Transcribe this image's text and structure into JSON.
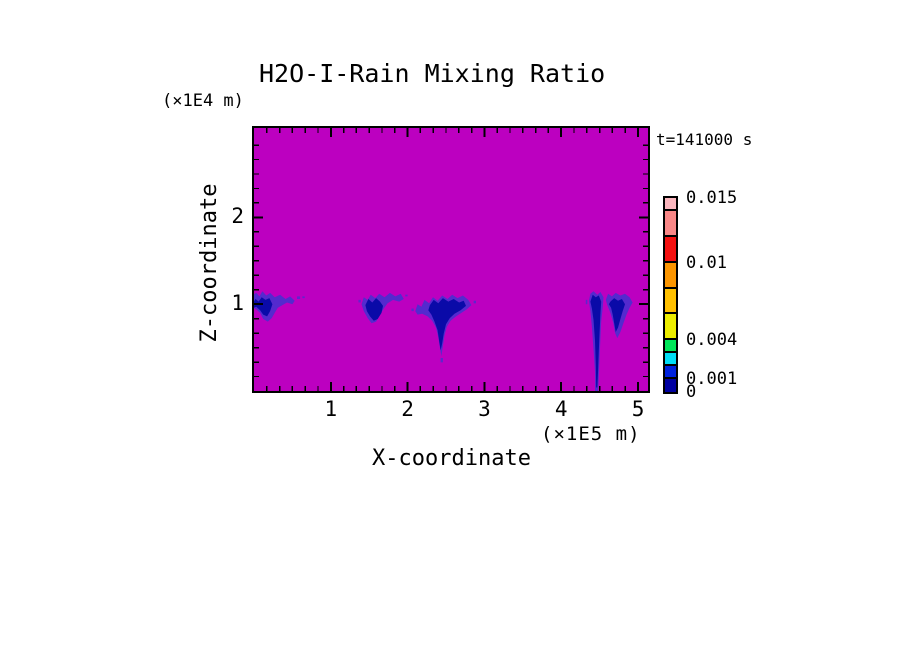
{
  "chart_data": {
    "type": "heatmap",
    "title": "H2O-I-Rain Mixing Ratio",
    "time_annotation": "t=141000 s",
    "grid": false,
    "legend_position": "right",
    "background_color": "#BC00C0",
    "background_note": "magenta field = zero / no rain mixing ratio",
    "x_axis": {
      "label": "X-coordinate",
      "unit": "(×1E5 m)",
      "range": [
        0,
        5.13
      ],
      "major_ticks": [
        1,
        2,
        3,
        4,
        5
      ],
      "minor_tick_interval": 0.1667
    },
    "z_axis": {
      "label": "Z-coordinate",
      "unit": "(×1E4 m)",
      "range": [
        0,
        3.03
      ],
      "major_ticks": [
        1,
        2
      ],
      "minor_tick_interval": 0.1667
    },
    "colorbar": {
      "value_range": [
        0,
        0.015
      ],
      "labels": [
        {
          "text": "0.015",
          "value": 0.015
        },
        {
          "text": "0.01",
          "value": 0.01
        },
        {
          "text": "0.004",
          "value": 0.004
        },
        {
          "text": "0.001",
          "value": 0.001
        },
        {
          "text": "0",
          "value": 0
        }
      ],
      "levels": [
        {
          "from": 0,
          "to": 0.001,
          "color": "#0000A0"
        },
        {
          "from": 0.001,
          "to": 0.002,
          "color": "#0022DD"
        },
        {
          "from": 0.002,
          "to": 0.003,
          "color": "#00DDF6"
        },
        {
          "from": 0.003,
          "to": 0.004,
          "color": "#00E659"
        },
        {
          "from": 0.004,
          "to": 0.006,
          "color": "#EDED00"
        },
        {
          "from": 0.006,
          "to": 0.008,
          "color": "#FFC000"
        },
        {
          "from": 0.008,
          "to": 0.01,
          "color": "#FB9500"
        },
        {
          "from": 0.01,
          "to": 0.012,
          "color": "#F41111"
        },
        {
          "from": 0.012,
          "to": 0.014,
          "color": "#F98787"
        },
        {
          "from": 0.014,
          "to": 0.015,
          "color": "#FBB6BE"
        }
      ]
    },
    "palette": {
      "fringe": "#4630CF",
      "core": "#0A0AA8"
    },
    "features": [
      {
        "name": "rain-cell-1",
        "value_band": [
          0,
          0.002
        ],
        "x_range": [
          0.0,
          0.55
        ],
        "z_range": [
          0.8,
          1.15
        ],
        "fringe": [
          [
            -0.03,
            0.97
          ],
          [
            -0.03,
            1.1
          ],
          [
            0.03,
            1.13
          ],
          [
            0.07,
            1.09
          ],
          [
            0.11,
            1.15
          ],
          [
            0.16,
            1.1
          ],
          [
            0.21,
            1.13
          ],
          [
            0.27,
            1.08
          ],
          [
            0.34,
            1.11
          ],
          [
            0.41,
            1.06
          ],
          [
            0.47,
            1.09
          ],
          [
            0.53,
            1.04
          ],
          [
            0.5,
            1.0
          ],
          [
            0.43,
            1.02
          ],
          [
            0.37,
            0.99
          ],
          [
            0.31,
            0.96
          ],
          [
            0.27,
            0.9
          ],
          [
            0.23,
            0.84
          ],
          [
            0.18,
            0.8
          ],
          [
            0.12,
            0.83
          ],
          [
            0.08,
            0.9
          ],
          [
            0.03,
            0.94
          ]
        ],
        "core": [
          [
            -0.03,
            0.99
          ],
          [
            0.02,
            1.06
          ],
          [
            0.06,
            1.03
          ],
          [
            0.1,
            1.08
          ],
          [
            0.15,
            1.05
          ],
          [
            0.2,
            1.07
          ],
          [
            0.24,
            1.0
          ],
          [
            0.21,
            0.92
          ],
          [
            0.17,
            0.86
          ],
          [
            0.12,
            0.88
          ],
          [
            0.08,
            0.93
          ],
          [
            0.03,
            0.97
          ],
          [
            -0.03,
            0.95
          ]
        ]
      },
      {
        "name": "rain-cell-2",
        "value_band": [
          0,
          0.002
        ],
        "x_range": [
          1.4,
          1.95
        ],
        "z_range": [
          0.78,
          1.13
        ],
        "fringe": [
          [
            1.4,
            1.0
          ],
          [
            1.43,
            1.08
          ],
          [
            1.48,
            1.05
          ],
          [
            1.52,
            1.11
          ],
          [
            1.58,
            1.07
          ],
          [
            1.63,
            1.12
          ],
          [
            1.7,
            1.08
          ],
          [
            1.77,
            1.13
          ],
          [
            1.84,
            1.09
          ],
          [
            1.91,
            1.12
          ],
          [
            1.95,
            1.06
          ],
          [
            1.89,
            1.03
          ],
          [
            1.81,
            1.05
          ],
          [
            1.74,
            1.01
          ],
          [
            1.69,
            0.95
          ],
          [
            1.64,
            0.88
          ],
          [
            1.59,
            0.8
          ],
          [
            1.53,
            0.78
          ],
          [
            1.48,
            0.84
          ],
          [
            1.43,
            0.92
          ]
        ],
        "core": [
          [
            1.45,
            0.99
          ],
          [
            1.49,
            1.06
          ],
          [
            1.54,
            1.02
          ],
          [
            1.59,
            1.07
          ],
          [
            1.64,
            1.03
          ],
          [
            1.68,
            0.98
          ],
          [
            1.66,
            0.9
          ],
          [
            1.61,
            0.83
          ],
          [
            1.56,
            0.81
          ],
          [
            1.51,
            0.86
          ],
          [
            1.47,
            0.92
          ]
        ]
      },
      {
        "name": "rain-cell-3",
        "value_band": [
          0,
          0.002
        ],
        "x_range": [
          2.1,
          2.83
        ],
        "z_range": [
          0.4,
          1.11
        ],
        "note": "wide anvil with downdraft tail reaching z≈0.4 near x≈2.44",
        "fringe": [
          [
            2.1,
            0.92
          ],
          [
            2.13,
            1.0
          ],
          [
            2.18,
            0.97
          ],
          [
            2.22,
            1.05
          ],
          [
            2.28,
            1.01
          ],
          [
            2.33,
            1.08
          ],
          [
            2.39,
            1.04
          ],
          [
            2.45,
            1.1
          ],
          [
            2.52,
            1.06
          ],
          [
            2.58,
            1.11
          ],
          [
            2.65,
            1.07
          ],
          [
            2.72,
            1.1
          ],
          [
            2.79,
            1.05
          ],
          [
            2.83,
            0.99
          ],
          [
            2.77,
            0.94
          ],
          [
            2.7,
            0.9
          ],
          [
            2.63,
            0.86
          ],
          [
            2.56,
            0.81
          ],
          [
            2.51,
            0.74
          ],
          [
            2.48,
            0.64
          ],
          [
            2.46,
            0.52
          ],
          [
            2.44,
            0.4
          ],
          [
            2.42,
            0.5
          ],
          [
            2.4,
            0.62
          ],
          [
            2.37,
            0.73
          ],
          [
            2.32,
            0.81
          ],
          [
            2.26,
            0.86
          ],
          [
            2.19,
            0.89
          ],
          [
            2.13,
            0.88
          ]
        ],
        "core": [
          [
            2.29,
            0.99
          ],
          [
            2.34,
            1.05
          ],
          [
            2.4,
            1.01
          ],
          [
            2.46,
            1.07
          ],
          [
            2.53,
            1.03
          ],
          [
            2.6,
            1.06
          ],
          [
            2.67,
            1.02
          ],
          [
            2.73,
            1.04
          ],
          [
            2.76,
            0.98
          ],
          [
            2.69,
            0.93
          ],
          [
            2.61,
            0.89
          ],
          [
            2.55,
            0.84
          ],
          [
            2.5,
            0.77
          ],
          [
            2.47,
            0.66
          ],
          [
            2.45,
            0.55
          ],
          [
            2.43,
            0.47
          ],
          [
            2.41,
            0.58
          ],
          [
            2.39,
            0.7
          ],
          [
            2.35,
            0.8
          ],
          [
            2.31,
            0.88
          ],
          [
            2.27,
            0.93
          ]
        ]
      },
      {
        "name": "rain-shaft-4",
        "value_band": [
          0,
          0.002
        ],
        "x_range": [
          4.36,
          4.55
        ],
        "z_range": [
          0.0,
          1.15
        ],
        "note": "narrow precipitation shaft reaching the surface near x≈4.46",
        "fringe": [
          [
            4.36,
            1.04
          ],
          [
            4.38,
            1.12
          ],
          [
            4.42,
            1.15
          ],
          [
            4.47,
            1.11
          ],
          [
            4.51,
            1.14
          ],
          [
            4.55,
            1.08
          ],
          [
            4.54,
            0.96
          ],
          [
            4.52,
            0.8
          ],
          [
            4.51,
            0.6
          ],
          [
            4.5,
            0.38
          ],
          [
            4.49,
            0.16
          ],
          [
            4.48,
            0.0
          ],
          [
            4.44,
            0.0
          ],
          [
            4.44,
            0.22
          ],
          [
            4.42,
            0.48
          ],
          [
            4.4,
            0.74
          ],
          [
            4.38,
            0.92
          ]
        ],
        "core": [
          [
            4.38,
            1.03
          ],
          [
            4.41,
            1.11
          ],
          [
            4.45,
            1.08
          ],
          [
            4.49,
            1.1
          ],
          [
            4.52,
            1.03
          ],
          [
            4.51,
            0.88
          ],
          [
            4.5,
            0.68
          ],
          [
            4.49,
            0.46
          ],
          [
            4.48,
            0.24
          ],
          [
            4.47,
            0.04
          ],
          [
            4.455,
            0.04
          ],
          [
            4.45,
            0.3
          ],
          [
            4.44,
            0.58
          ],
          [
            4.42,
            0.82
          ],
          [
            4.4,
            0.95
          ]
        ]
      },
      {
        "name": "rain-cell-5",
        "value_band": [
          0,
          0.002
        ],
        "x_range": [
          4.58,
          4.93
        ],
        "z_range": [
          0.61,
          1.13
        ],
        "fringe": [
          [
            4.58,
            1.05
          ],
          [
            4.61,
            1.12
          ],
          [
            4.66,
            1.09
          ],
          [
            4.71,
            1.13
          ],
          [
            4.77,
            1.1
          ],
          [
            4.83,
            1.12
          ],
          [
            4.89,
            1.08
          ],
          [
            4.93,
            1.02
          ],
          [
            4.89,
            0.96
          ],
          [
            4.85,
            0.88
          ],
          [
            4.81,
            0.78
          ],
          [
            4.77,
            0.68
          ],
          [
            4.73,
            0.61
          ],
          [
            4.7,
            0.67
          ],
          [
            4.68,
            0.78
          ],
          [
            4.64,
            0.9
          ],
          [
            4.6,
            0.99
          ]
        ],
        "core": [
          [
            4.64,
            1.03
          ],
          [
            4.69,
            1.07
          ],
          [
            4.74,
            1.04
          ],
          [
            4.79,
            1.06
          ],
          [
            4.83,
            1.0
          ],
          [
            4.8,
            0.92
          ],
          [
            4.77,
            0.83
          ],
          [
            4.74,
            0.73
          ],
          [
            4.71,
            0.68
          ],
          [
            4.69,
            0.78
          ],
          [
            4.67,
            0.88
          ],
          [
            4.65,
            0.96
          ],
          [
            4.62,
            1.0
          ]
        ]
      }
    ],
    "specks": [
      [
        0.56,
        1.06,
        0.04,
        0.03
      ],
      [
        0.63,
        1.07,
        0.03,
        0.02
      ],
      [
        1.36,
        1.02,
        0.03,
        0.03
      ],
      [
        1.97,
        1.09,
        0.03,
        0.02
      ],
      [
        2.05,
        0.92,
        0.03,
        0.03
      ],
      [
        2.86,
        1.01,
        0.03,
        0.03
      ],
      [
        4.32,
        1.0,
        0.02,
        0.05
      ],
      [
        2.43,
        0.33,
        0.03,
        0.05
      ]
    ]
  }
}
